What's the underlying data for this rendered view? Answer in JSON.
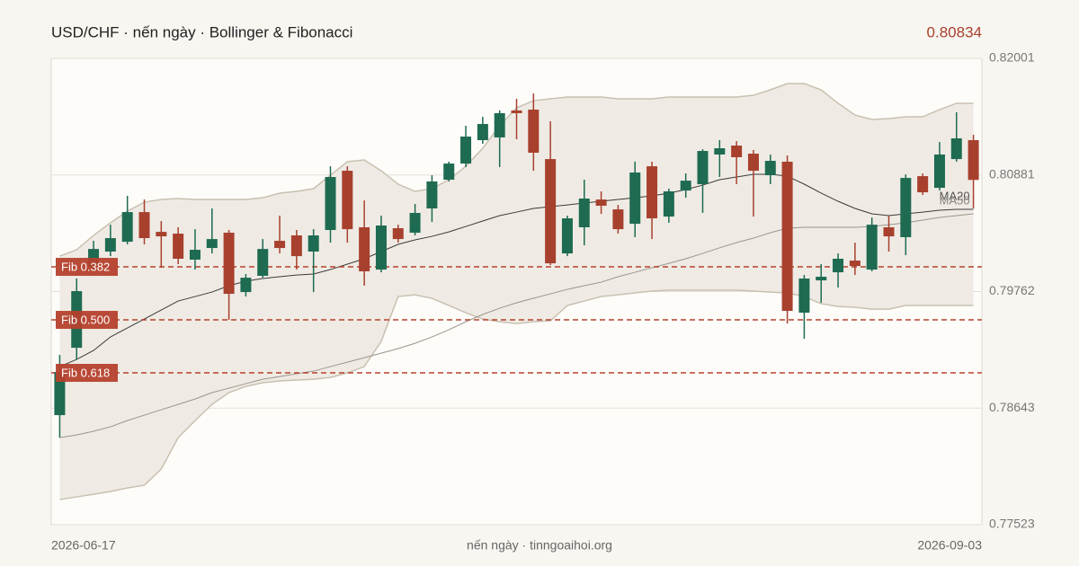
{
  "chart_data": {
    "type": "candlestick",
    "title": "USD/CHF · nến ngày · Bollinger & Fibonacci",
    "last_price": 0.80834,
    "caption": "nến ngày · tinngoaihoi.org",
    "categories": [
      "2026-06-17",
      null,
      null,
      null,
      null,
      null,
      null,
      null,
      null,
      null,
      null,
      null,
      null,
      null,
      null,
      null,
      null,
      null,
      null,
      null,
      null,
      null,
      null,
      null,
      null,
      null,
      null,
      null,
      null,
      null,
      null,
      null,
      null,
      null,
      null,
      null,
      null,
      null,
      null,
      null,
      null,
      null,
      null,
      null,
      null,
      null,
      null,
      null,
      null,
      null,
      null,
      null,
      null,
      null,
      "2026-09-03"
    ],
    "up_color": "#1e6b52",
    "down_color": "#a8402e",
    "open": [
      0.78575,
      0.79222,
      0.79999,
      0.80146,
      0.8024,
      0.80525,
      0.80335,
      0.80318,
      0.80068,
      0.8018,
      0.80327,
      0.79757,
      0.79913,
      0.80249,
      0.80301,
      0.80146,
      0.80353,
      0.80922,
      0.80379,
      0.79973,
      0.8037,
      0.80327,
      0.8056,
      0.80836,
      0.80991,
      0.81216,
      0.81242,
      0.81501,
      0.81509,
      0.81034,
      0.80128,
      0.80379,
      0.80646,
      0.80551,
      0.80413,
      0.80965,
      0.80482,
      0.80732,
      0.80793,
      0.81078,
      0.81164,
      0.81086,
      0.80879,
      0.81009,
      0.79559,
      0.79869,
      0.79947,
      0.80059,
      0.79973,
      0.80379,
      0.80284,
      0.8087,
      0.80758,
      0.81034,
      0.81216
    ],
    "high": [
      0.79153,
      0.79887,
      0.80249,
      0.80404,
      0.80681,
      0.80646,
      0.80439,
      0.80379,
      0.80361,
      0.8056,
      0.80353,
      0.7993,
      0.80266,
      0.80491,
      0.80353,
      0.80361,
      0.80965,
      0.80965,
      0.80637,
      0.80491,
      0.80404,
      0.80603,
      0.80879,
      0.81009,
      0.81354,
      0.8144,
      0.81501,
      0.81613,
      0.81664,
      0.81397,
      0.80491,
      0.80836,
      0.80724,
      0.80594,
      0.81009,
      0.81009,
      0.8075,
      0.80896,
      0.81129,
      0.81216,
      0.81207,
      0.81121,
      0.81078,
      0.81069,
      0.79921,
      0.80025,
      0.80128,
      0.80232,
      0.80473,
      0.80491,
      0.80888,
      0.80896,
      0.81198,
      0.81483,
      0.81267
    ],
    "low": [
      0.78359,
      0.7911,
      0.79947,
      0.80102,
      0.80215,
      0.80215,
      0.7999,
      0.80025,
      0.79973,
      0.80128,
      0.7949,
      0.79714,
      0.79895,
      0.80128,
      0.79973,
      0.79757,
      0.80232,
      0.80232,
      0.79818,
      0.79947,
      0.80232,
      0.80301,
      0.8043,
      0.80819,
      0.80957,
      0.81181,
      0.80957,
      0.81224,
      0.80922,
      0.80016,
      0.80102,
      0.80206,
      0.80508,
      0.80318,
      0.80284,
      0.80266,
      0.80422,
      0.80663,
      0.80517,
      0.80862,
      0.80793,
      0.80482,
      0.80793,
      0.79455,
      0.79308,
      0.79654,
      0.798,
      0.79921,
      0.79956,
      0.80146,
      0.80111,
      0.80689,
      0.80732,
      0.81009,
      0.8056
    ],
    "close": [
      0.78989,
      0.79766,
      0.80171,
      0.80275,
      0.80525,
      0.80275,
      0.80292,
      0.80077,
      0.80163,
      0.80266,
      0.7974,
      0.79895,
      0.80171,
      0.8018,
      0.80102,
      0.80301,
      0.80862,
      0.80361,
      0.79956,
      0.80396,
      0.80266,
      0.80517,
      0.80819,
      0.80991,
      0.8125,
      0.81371,
      0.81475,
      0.81475,
      0.81095,
      0.80033,
      0.80465,
      0.80655,
      0.80586,
      0.80361,
      0.80905,
      0.80465,
      0.80724,
      0.80827,
      0.81112,
      0.81138,
      0.81052,
      0.80922,
      0.81017,
      0.79576,
      0.79887,
      0.79904,
      0.80077,
      0.80007,
      0.80404,
      0.80292,
      0.80853,
      0.80715,
      0.81078,
      0.81233,
      0.80834
    ],
    "bollinger": {
      "color": "#c9c0b0",
      "fill": "#efebe4",
      "upper": [
        0.80102,
        0.80163,
        0.80301,
        0.80422,
        0.80534,
        0.8062,
        0.80646,
        0.80655,
        0.80646,
        0.80646,
        0.80646,
        0.80646,
        0.80663,
        0.80707,
        0.80724,
        0.8075,
        0.80879,
        0.81009,
        0.81026,
        0.80922,
        0.80793,
        0.80724,
        0.8075,
        0.80836,
        0.80965,
        0.81138,
        0.81354,
        0.81526,
        0.81595,
        0.81613,
        0.8163,
        0.8163,
        0.8163,
        0.81613,
        0.81613,
        0.81613,
        0.8163,
        0.8163,
        0.8163,
        0.8163,
        0.8163,
        0.81647,
        0.81699,
        0.81759,
        0.81759,
        0.81699,
        0.8157,
        0.81457,
        0.81414,
        0.81423,
        0.8144,
        0.8144,
        0.81509,
        0.8157,
        0.8157
      ],
      "lower": [
        0.77764,
        0.7779,
        0.77815,
        0.77841,
        0.77876,
        0.77902,
        0.78057,
        0.78359,
        0.78523,
        0.78678,
        0.78791,
        0.78851,
        0.78886,
        0.78903,
        0.78912,
        0.7892,
        0.78937,
        0.78981,
        0.79041,
        0.79283,
        0.79714,
        0.79731,
        0.79697,
        0.79628,
        0.79559,
        0.79498,
        0.79472,
        0.79455,
        0.79472,
        0.79481,
        0.79628,
        0.79671,
        0.79714,
        0.79731,
        0.79749,
        0.79766,
        0.79775,
        0.79775,
        0.79775,
        0.79775,
        0.79775,
        0.79766,
        0.79757,
        0.79749,
        0.79714,
        0.79645,
        0.79619,
        0.79611,
        0.79593,
        0.79593,
        0.79628,
        0.79628,
        0.79628,
        0.79628,
        0.79628
      ]
    },
    "series": [
      {
        "name": "MA20",
        "color": "#3a3a3a",
        "values": [
          0.79041,
          0.7911,
          0.79196,
          0.79326,
          0.79412,
          0.79498,
          0.79585,
          0.79671,
          0.79714,
          0.79757,
          0.79818,
          0.79861,
          0.79887,
          0.79904,
          0.79921,
          0.7993,
          0.79973,
          0.80025,
          0.80077,
          0.80146,
          0.80215,
          0.80258,
          0.80292,
          0.80335,
          0.80387,
          0.80439,
          0.80491,
          0.80525,
          0.8056,
          0.80577,
          0.80594,
          0.80612,
          0.80629,
          0.80646,
          0.80663,
          0.80681,
          0.80707,
          0.80741,
          0.80784,
          0.80836,
          0.80862,
          0.80888,
          0.80888,
          0.80871,
          0.80793,
          0.80707,
          0.80629,
          0.8056,
          0.80508,
          0.80491,
          0.80508,
          0.80525,
          0.80543,
          0.80551,
          0.80551
        ]
      },
      {
        "name": "MA50",
        "color": "#9a958c",
        "values": [
          0.78359,
          0.78385,
          0.7842,
          0.78463,
          0.78523,
          0.78575,
          0.78627,
          0.78678,
          0.7873,
          0.78791,
          0.78834,
          0.78877,
          0.7892,
          0.78946,
          0.78972,
          0.78998,
          0.79041,
          0.79084,
          0.79127,
          0.7917,
          0.79214,
          0.79265,
          0.79326,
          0.79395,
          0.79472,
          0.79542,
          0.79602,
          0.79654,
          0.79697,
          0.7974,
          0.79783,
          0.79818,
          0.79852,
          0.79904,
          0.79947,
          0.7999,
          0.80033,
          0.80077,
          0.80128,
          0.80182,
          0.80232,
          0.80275,
          0.80327,
          0.8037,
          0.80379,
          0.80379,
          0.80379,
          0.80379,
          0.80387,
          0.80404,
          0.80422,
          0.80448,
          0.80474,
          0.80491,
          0.80508
        ]
      }
    ],
    "fib": [
      {
        "label": "Fib 0.382",
        "value": 0.79999
      },
      {
        "label": "Fib 0.500",
        "value": 0.7949
      },
      {
        "label": "Fib 0.618",
        "value": 0.78981
      }
    ],
    "fib_color": "#b5412d",
    "ylim": [
      0.77523,
      0.82001
    ],
    "yticks": [
      0.77523,
      0.78643,
      0.79762,
      0.80881,
      0.82001
    ],
    "grid": true
  }
}
